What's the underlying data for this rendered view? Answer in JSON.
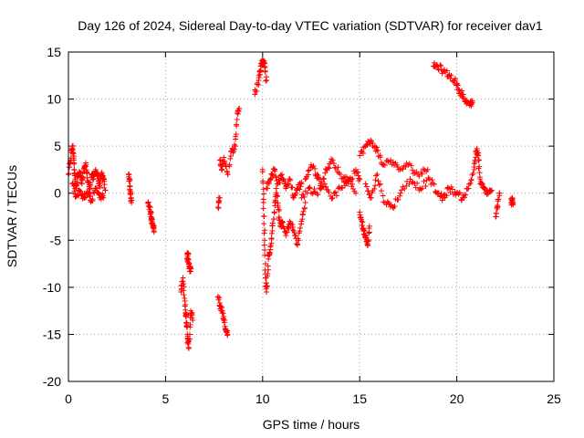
{
  "chart_data": {
    "type": "scatter",
    "title": "Day 126 of 2024, Sidereal Day-to-day VTEC variation (SDTVAR) for receiver dav1",
    "xlabel": "GPS time / hours",
    "ylabel": "SDTVAR / TECUs",
    "xlim": [
      0,
      25
    ],
    "ylim": [
      -20,
      15
    ],
    "xticks": [
      0,
      5,
      10,
      15,
      20,
      25
    ],
    "yticks": [
      -20,
      -15,
      -10,
      -5,
      0,
      5,
      10,
      15
    ],
    "xtick_labels": [
      "0",
      "5",
      "10",
      "15",
      "20",
      "25"
    ],
    "ytick_labels": [
      "-20",
      "-15",
      "-10",
      "-5",
      "0",
      "5",
      "10",
      "15"
    ],
    "grid": true,
    "marker": "+",
    "series": [
      {
        "name": "SDTVAR",
        "color": "#ff0000",
        "segments": [
          {
            "x": [
              0.0,
              0.1,
              0.2,
              0.25,
              0.3,
              0.35,
              0.4,
              0.5,
              0.6,
              0.7,
              0.8,
              0.9,
              1.0,
              1.1,
              1.2,
              1.3,
              1.4,
              1.5,
              1.6,
              1.7,
              1.8,
              1.9
            ],
            "y": [
              2.0,
              3.5,
              5.0,
              4.2,
              2.5,
              1.5,
              0.5,
              1.8,
              2.2,
              1.0,
              2.5,
              3.0,
              1.2,
              0.5,
              2.0,
              1.5,
              2.5,
              1.8,
              0.8,
              2.0,
              1.5,
              0.3
            ]
          },
          {
            "x": [
              0.2,
              0.4,
              0.6,
              0.8,
              1.0,
              1.2,
              1.4,
              1.6,
              1.8
            ],
            "y": [
              1.0,
              -0.3,
              0.2,
              -0.5,
              0.0,
              -0.8,
              0.5,
              -0.2,
              -0.5
            ]
          },
          {
            "x": [
              3.1,
              3.15,
              3.2,
              3.25
            ],
            "y": [
              2.0,
              1.5,
              0.0,
              -1.0
            ]
          },
          {
            "x": [
              4.1,
              4.2,
              4.25,
              4.3,
              4.35,
              4.4
            ],
            "y": [
              -1.0,
              -1.5,
              -2.5,
              -3.0,
              -3.5,
              -4.0
            ]
          },
          {
            "x": [
              5.8,
              5.9,
              6.0,
              6.05,
              6.1,
              6.15,
              6.2,
              6.3,
              6.4
            ],
            "y": [
              -10.5,
              -9.0,
              -12.0,
              -13.0,
              -14.0,
              -15.5,
              -16.5,
              -12.5,
              -13.5
            ]
          },
          {
            "x": [
              6.1,
              6.15,
              6.2,
              6.25,
              6.3
            ],
            "y": [
              -7.0,
              -6.5,
              -7.5,
              -8.0,
              -8.3
            ]
          },
          {
            "x": [
              7.7,
              7.8,
              7.9,
              8.0,
              8.1,
              8.2
            ],
            "y": [
              -11.0,
              -12.0,
              -12.5,
              -13.5,
              -14.5,
              -15.0
            ]
          },
          {
            "x": [
              7.8,
              7.9,
              8.0,
              8.2,
              8.4,
              8.6,
              8.7,
              8.8
            ],
            "y": [
              3.5,
              2.5,
              3.8,
              2.0,
              4.5,
              5.0,
              8.5,
              9.0
            ]
          },
          {
            "x": [
              7.7,
              7.8
            ],
            "y": [
              -1.5,
              -0.5
            ]
          },
          {
            "x": [
              9.6,
              9.8,
              9.9,
              10.0,
              10.1,
              10.2
            ],
            "y": [
              10.5,
              12.0,
              13.5,
              14.2,
              13.8,
              12.0
            ]
          },
          {
            "x": [
              10.0,
              10.05,
              10.1,
              10.15,
              10.2,
              10.3,
              10.4,
              10.5,
              10.6,
              10.7,
              10.8,
              10.9,
              11.0,
              11.2,
              11.4,
              11.6,
              11.8,
              12.0,
              12.2
            ],
            "y": [
              2.5,
              -1.0,
              -5.0,
              -9.0,
              -10.5,
              -7.0,
              -6.0,
              -4.0,
              -2.0,
              0.5,
              -1.5,
              -3.5,
              -3.0,
              -4.5,
              -3.0,
              -4.0,
              -5.5,
              -3.0,
              -1.0
            ]
          },
          {
            "x": [
              10.2,
              10.4,
              10.6,
              10.8,
              11.0,
              11.2,
              11.4,
              11.6,
              11.8,
              12.0
            ],
            "y": [
              0.5,
              1.5,
              2.5,
              1.0,
              2.0,
              0.5,
              1.5,
              -0.5,
              0.5,
              1.0
            ]
          },
          {
            "x": [
              12.2,
              12.5,
              12.8,
              13.0,
              13.3,
              13.6,
              14.0,
              14.4,
              14.8,
              15.0
            ],
            "y": [
              1.5,
              3.0,
              2.0,
              1.0,
              2.5,
              3.5,
              2.0,
              1.0,
              2.5,
              1.5
            ]
          },
          {
            "x": [
              12.0,
              12.4,
              12.8,
              13.2,
              13.6,
              14.0,
              14.4,
              14.8
            ],
            "y": [
              -0.5,
              0.5,
              0.0,
              1.0,
              -0.5,
              0.5,
              1.5,
              0.0
            ]
          },
          {
            "x": [
              15.0,
              15.1,
              15.2,
              15.3,
              15.4,
              15.5
            ],
            "y": [
              -2.0,
              -3.0,
              -4.0,
              -4.5,
              -5.5,
              -3.5
            ]
          },
          {
            "x": [
              15.0,
              15.3,
              15.6,
              15.9,
              16.2,
              16.6,
              17.0,
              17.5,
              18.0,
              18.5
            ],
            "y": [
              4.0,
              5.0,
              5.5,
              4.5,
              3.0,
              3.5,
              2.5,
              3.0,
              2.0,
              2.5
            ]
          },
          {
            "x": [
              15.3,
              15.6,
              15.9,
              16.3,
              16.7,
              17.1,
              17.6,
              18.1,
              18.6,
              19.0
            ],
            "y": [
              1.0,
              -0.5,
              2.0,
              -1.0,
              -1.5,
              0.0,
              1.5,
              0.5,
              1.5,
              0.0
            ]
          },
          {
            "x": [
              18.8,
              19.0,
              19.3,
              19.6,
              19.9,
              20.1,
              20.3,
              20.5,
              20.7,
              20.8
            ],
            "y": [
              13.5,
              13.5,
              13.0,
              12.5,
              12.0,
              11.0,
              10.5,
              9.5,
              9.5,
              9.8
            ]
          },
          {
            "x": [
              19.0,
              19.3,
              19.6,
              20.0,
              20.3,
              20.6,
              20.9,
              21.0,
              21.1,
              21.2
            ],
            "y": [
              0.0,
              -0.5,
              0.5,
              0.0,
              -0.5,
              0.5,
              2.5,
              4.5,
              4.0,
              1.5
            ]
          },
          {
            "x": [
              21.2,
              21.4,
              21.6,
              21.8
            ],
            "y": [
              1.0,
              0.5,
              0.0,
              0.3
            ]
          },
          {
            "x": [
              22.0,
              22.1,
              22.2
            ],
            "y": [
              -2.5,
              -1.5,
              0.0
            ]
          },
          {
            "x": [
              22.8,
              22.85,
              22.9
            ],
            "y": [
              -1.0,
              -0.5,
              -1.2
            ]
          }
        ]
      }
    ]
  }
}
